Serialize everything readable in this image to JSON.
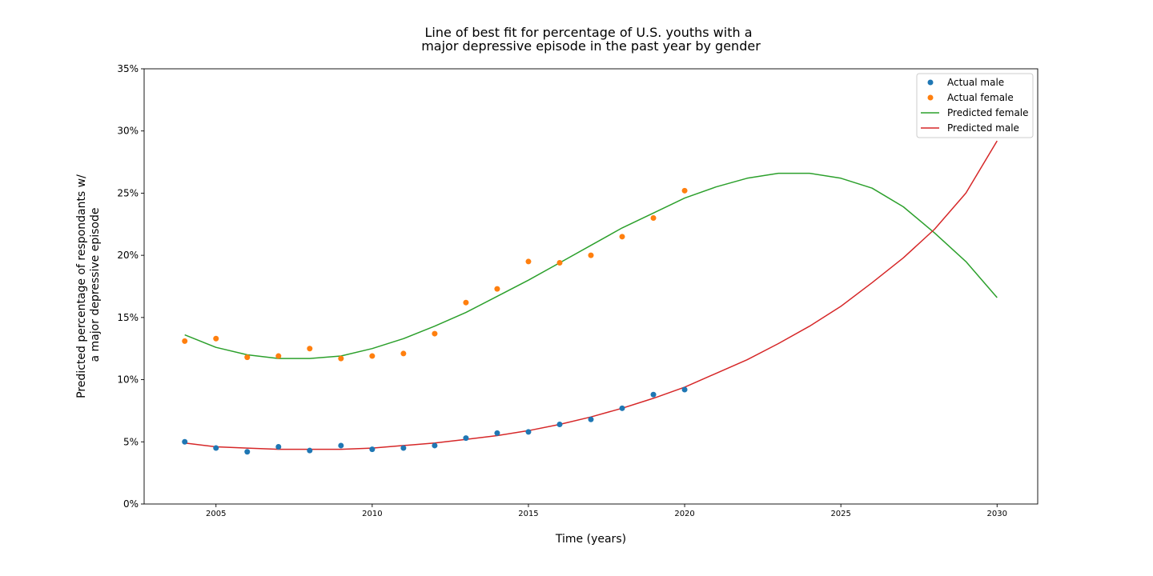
{
  "chart_data": {
    "type": "line",
    "title_lines": [
      "Line of best fit for percentage of U.S. youths with a",
      "major depressive episode in the past year by gender"
    ],
    "xlabel": "Time (years)",
    "ylabel_lines": [
      "Predicted percentage of respondants w/",
      "a major depressive episode"
    ],
    "xlim": [
      2002.7,
      2031.3
    ],
    "ylim": [
      0,
      35
    ],
    "xticks": [
      2005,
      2010,
      2015,
      2020,
      2025,
      2030
    ],
    "xtick_labels": [
      "2005",
      "2010",
      "2015",
      "2020",
      "2025",
      "2030"
    ],
    "yticks": [
      0,
      5,
      10,
      15,
      20,
      25,
      30,
      35
    ],
    "ytick_labels": [
      "0%",
      "5%",
      "10%",
      "15%",
      "20%",
      "25%",
      "30%",
      "35%"
    ],
    "grid": false,
    "legend_position": "top-right",
    "series": [
      {
        "name": "Actual male",
        "kind": "scatter",
        "color": "#1f77b4",
        "x": [
          2004,
          2005,
          2006,
          2007,
          2008,
          2009,
          2010,
          2011,
          2012,
          2013,
          2014,
          2015,
          2016,
          2017,
          2018,
          2019,
          2020
        ],
        "y": [
          5.0,
          4.5,
          4.2,
          4.6,
          4.3,
          4.7,
          4.4,
          4.5,
          4.7,
          5.3,
          5.7,
          5.8,
          6.4,
          6.8,
          7.7,
          8.8,
          9.2
        ]
      },
      {
        "name": "Actual female",
        "kind": "scatter",
        "color": "#ff7f0e",
        "x": [
          2004,
          2005,
          2006,
          2007,
          2008,
          2009,
          2010,
          2011,
          2012,
          2013,
          2014,
          2015,
          2016,
          2017,
          2018,
          2019,
          2020
        ],
        "y": [
          13.1,
          13.3,
          11.8,
          11.9,
          12.5,
          11.7,
          11.9,
          12.1,
          13.7,
          16.2,
          17.3,
          19.5,
          19.4,
          20.0,
          21.5,
          23.0,
          25.2
        ]
      },
      {
        "name": "Predicted female",
        "kind": "line",
        "color": "#2ca02c",
        "x": [
          2004,
          2005,
          2006,
          2007,
          2008,
          2009,
          2010,
          2011,
          2012,
          2013,
          2014,
          2015,
          2016,
          2017,
          2018,
          2019,
          2020,
          2021,
          2022,
          2023,
          2024,
          2025,
          2026,
          2027,
          2028,
          2029,
          2030
        ],
        "y": [
          13.6,
          12.6,
          12.0,
          11.7,
          11.7,
          11.9,
          12.5,
          13.3,
          14.3,
          15.4,
          16.7,
          18.0,
          19.4,
          20.8,
          22.2,
          23.4,
          24.6,
          25.5,
          26.2,
          26.6,
          26.6,
          26.2,
          25.4,
          23.9,
          21.8,
          19.5,
          16.6
        ]
      },
      {
        "name": "Predicted male",
        "kind": "line",
        "color": "#d62728",
        "x": [
          2004,
          2005,
          2006,
          2007,
          2008,
          2009,
          2010,
          2011,
          2012,
          2013,
          2014,
          2015,
          2016,
          2017,
          2018,
          2019,
          2020,
          2021,
          2022,
          2023,
          2024,
          2025,
          2026,
          2027,
          2028,
          2029,
          2030
        ],
        "y": [
          4.9,
          4.6,
          4.5,
          4.4,
          4.4,
          4.4,
          4.5,
          4.7,
          4.9,
          5.2,
          5.5,
          5.9,
          6.4,
          7.0,
          7.7,
          8.5,
          9.4,
          10.5,
          11.6,
          12.9,
          14.3,
          15.9,
          17.8,
          19.8,
          22.1,
          25.0,
          29.2
        ]
      }
    ]
  }
}
